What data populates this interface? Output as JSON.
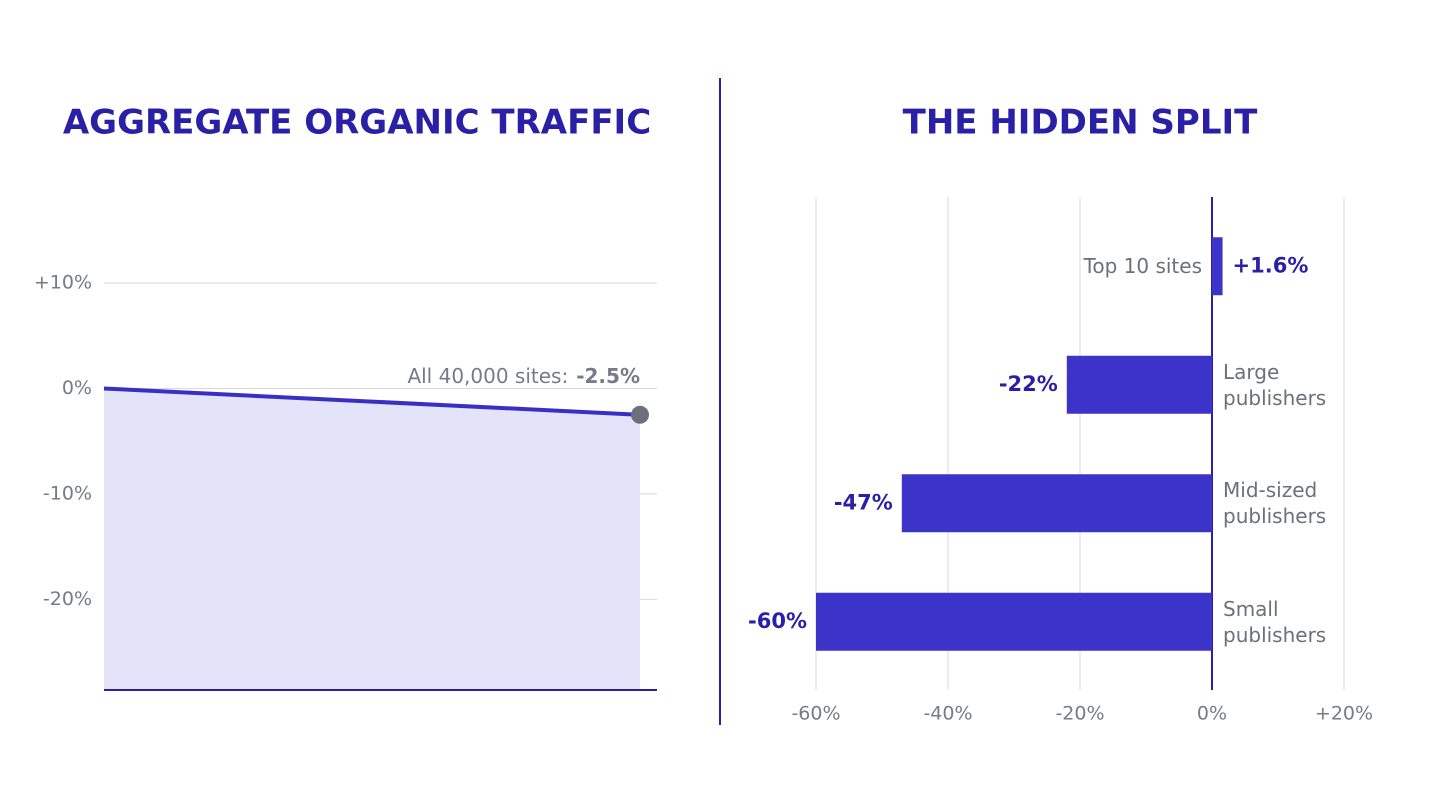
{
  "chart_data": [
    {
      "type": "line",
      "title": "AGGREGATE ORGANIC TRAFFIC",
      "categories": [
        null,
        null
      ],
      "values": [
        0,
        -2.5
      ],
      "value_labels": [
        null,
        "-2.5%"
      ],
      "annotation": "All 40,000 sites:",
      "color": "#3a2fc4",
      "fill": "#e3e3fa",
      "marker_color": "#6d707c",
      "ylim": [
        -28.6,
        10
      ],
      "yticks": [
        {
          "value": 10,
          "label": "+10%"
        },
        {
          "value": 0,
          "label": "0%"
        },
        {
          "value": -10,
          "label": "-10%"
        },
        {
          "value": -20,
          "label": "-20%"
        }
      ],
      "grid": true
    },
    {
      "type": "barh",
      "title": "THE HIDDEN SPLIT",
      "categories": [
        "Top 10 sites",
        "Large publishers",
        "Mid-sized publishers",
        "Small publishers"
      ],
      "values": [
        1.6,
        -22,
        -47,
        -60
      ],
      "value_labels": [
        "+1.6%",
        "-22%",
        "-47%",
        "-60%"
      ],
      "color": "#3c33c8",
      "xlim": [
        -60,
        20
      ],
      "xticks": [
        {
          "value": -60,
          "label": "-60%"
        },
        {
          "value": -40,
          "label": "-40%"
        },
        {
          "value": -20,
          "label": "-20%"
        },
        {
          "value": 0,
          "label": "0%"
        },
        {
          "value": 20,
          "label": "+20%"
        }
      ],
      "grid": true
    }
  ]
}
